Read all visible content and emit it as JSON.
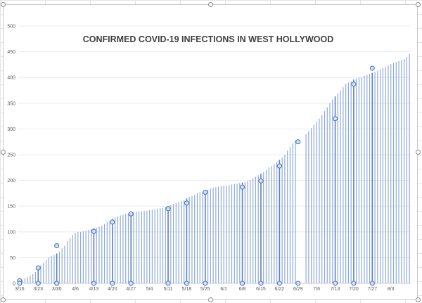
{
  "chart_data": {
    "type": "bar",
    "title": "CONFIRMED COVID-19 INFECTIONS IN WEST HOLLYWOOD",
    "xlabel": "",
    "ylabel": "",
    "ylim": [
      0,
      500
    ],
    "yticks": [
      0,
      50,
      100,
      150,
      200,
      250,
      300,
      350,
      400,
      450,
      500
    ],
    "ytick_labels": [
      "0",
      "50",
      "100",
      "150",
      "200",
      "250",
      "300",
      "350",
      "400",
      "450",
      "500"
    ],
    "xtick_labels": [
      "3/16",
      "3/23",
      "3/30",
      "4/6",
      "4/13",
      "4/20",
      "4/27",
      "5/4",
      "5/11",
      "5/18",
      "5/25",
      "6/1",
      "6/8",
      "6/15",
      "6/22",
      "6/29",
      "7/6",
      "7/13",
      "7/20",
      "7/27",
      "8/3"
    ],
    "start_date": "3/16",
    "grid": true,
    "legend": "none",
    "colors": {
      "bar": "#8eaad8",
      "bar_dark": "#5b7dc0",
      "marker": "#4a78c4",
      "frame": "#c8c8c8"
    },
    "values": [
      5,
      7,
      10,
      12,
      15,
      18,
      22,
      28,
      35,
      40,
      45,
      50,
      53,
      55,
      58,
      62,
      68,
      73,
      82,
      88,
      94,
      98,
      100,
      100,
      101,
      102,
      104,
      105,
      107,
      108,
      110,
      112,
      115,
      119,
      121,
      125,
      128,
      130,
      132,
      133,
      135,
      136,
      137,
      138,
      139,
      140,
      140,
      141,
      141,
      142,
      143,
      144,
      145,
      146,
      147,
      148,
      150,
      152,
      154,
      156,
      158,
      160,
      162,
      165,
      168,
      170,
      172,
      175,
      177,
      178,
      180,
      182,
      184,
      186,
      187,
      188,
      189,
      190,
      190,
      191,
      192,
      193,
      194,
      195,
      196,
      197,
      199,
      201,
      204,
      207,
      210,
      213,
      216,
      220,
      225,
      228,
      232,
      236,
      240,
      244,
      250,
      258,
      265,
      272,
      278,
      null,
      null,
      null,
      290,
      296,
      302,
      308,
      314,
      320,
      327,
      335,
      342,
      350,
      357,
      363,
      369,
      375,
      381,
      387,
      390,
      393,
      396,
      398,
      400,
      401,
      403,
      405,
      407,
      409,
      411,
      413,
      416,
      418,
      420,
      423,
      426,
      428,
      430,
      432,
      434,
      436,
      440,
      446
    ],
    "markers": [
      {
        "date": "3/16",
        "value": 5
      },
      {
        "date": "3/23",
        "value": 30
      },
      {
        "date": "3/30",
        "value": 73
      },
      {
        "date": "4/13",
        "value": 101
      },
      {
        "date": "4/20",
        "value": 119
      },
      {
        "date": "4/27",
        "value": 135
      },
      {
        "date": "5/11",
        "value": 145
      },
      {
        "date": "5/18",
        "value": 156
      },
      {
        "date": "5/25",
        "value": 177
      },
      {
        "date": "6/8",
        "value": 187
      },
      {
        "date": "6/15",
        "value": 199
      },
      {
        "date": "6/22",
        "value": 228
      },
      {
        "date": "6/29",
        "value": 275
      },
      {
        "date": "7/13",
        "value": 320
      },
      {
        "date": "7/20",
        "value": 387
      },
      {
        "date": "7/27",
        "value": 418
      }
    ]
  }
}
